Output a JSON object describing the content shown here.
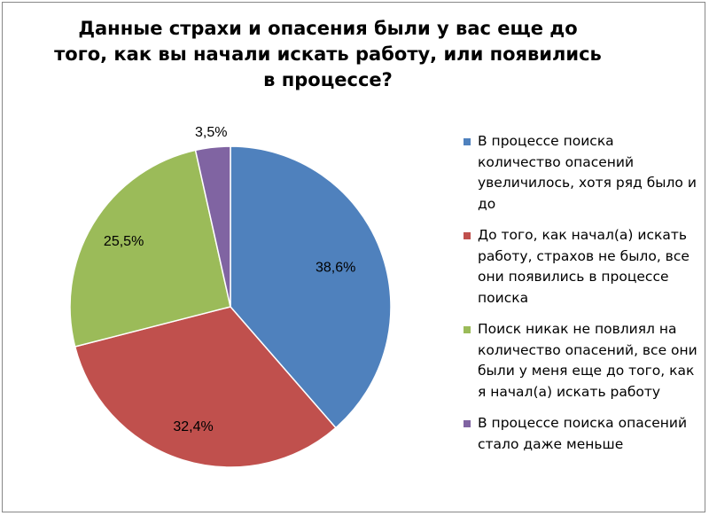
{
  "chart_data": {
    "type": "pie",
    "title": "Данные страхи и опасения были у вас еще до того, как вы начали искать работу, или появились в процессе?",
    "start": "top",
    "direction": "clockwise",
    "legend_position": "right",
    "slices": [
      {
        "name": "В процессе поиска количество опасений увеличилось, хотя ряд было и до",
        "value": 38.6,
        "label": "38,6%",
        "color": "#4F81BD"
      },
      {
        "name": "До того, как начал(а) искать работу, страхов не было, все они появились в процессе поиска",
        "value": 32.4,
        "label": "32,4%",
        "color": "#C0504D"
      },
      {
        "name": "Поиск никак не повлиял на количество опасений, все они были у меня еще до того, как я начал(а) искать работу",
        "value": 25.5,
        "label": "25,5%",
        "color": "#9BBB59"
      },
      {
        "name": "В процессе поиска опасений стало даже меньше",
        "value": 3.5,
        "label": "3,5%",
        "color": "#8064A2"
      }
    ]
  }
}
